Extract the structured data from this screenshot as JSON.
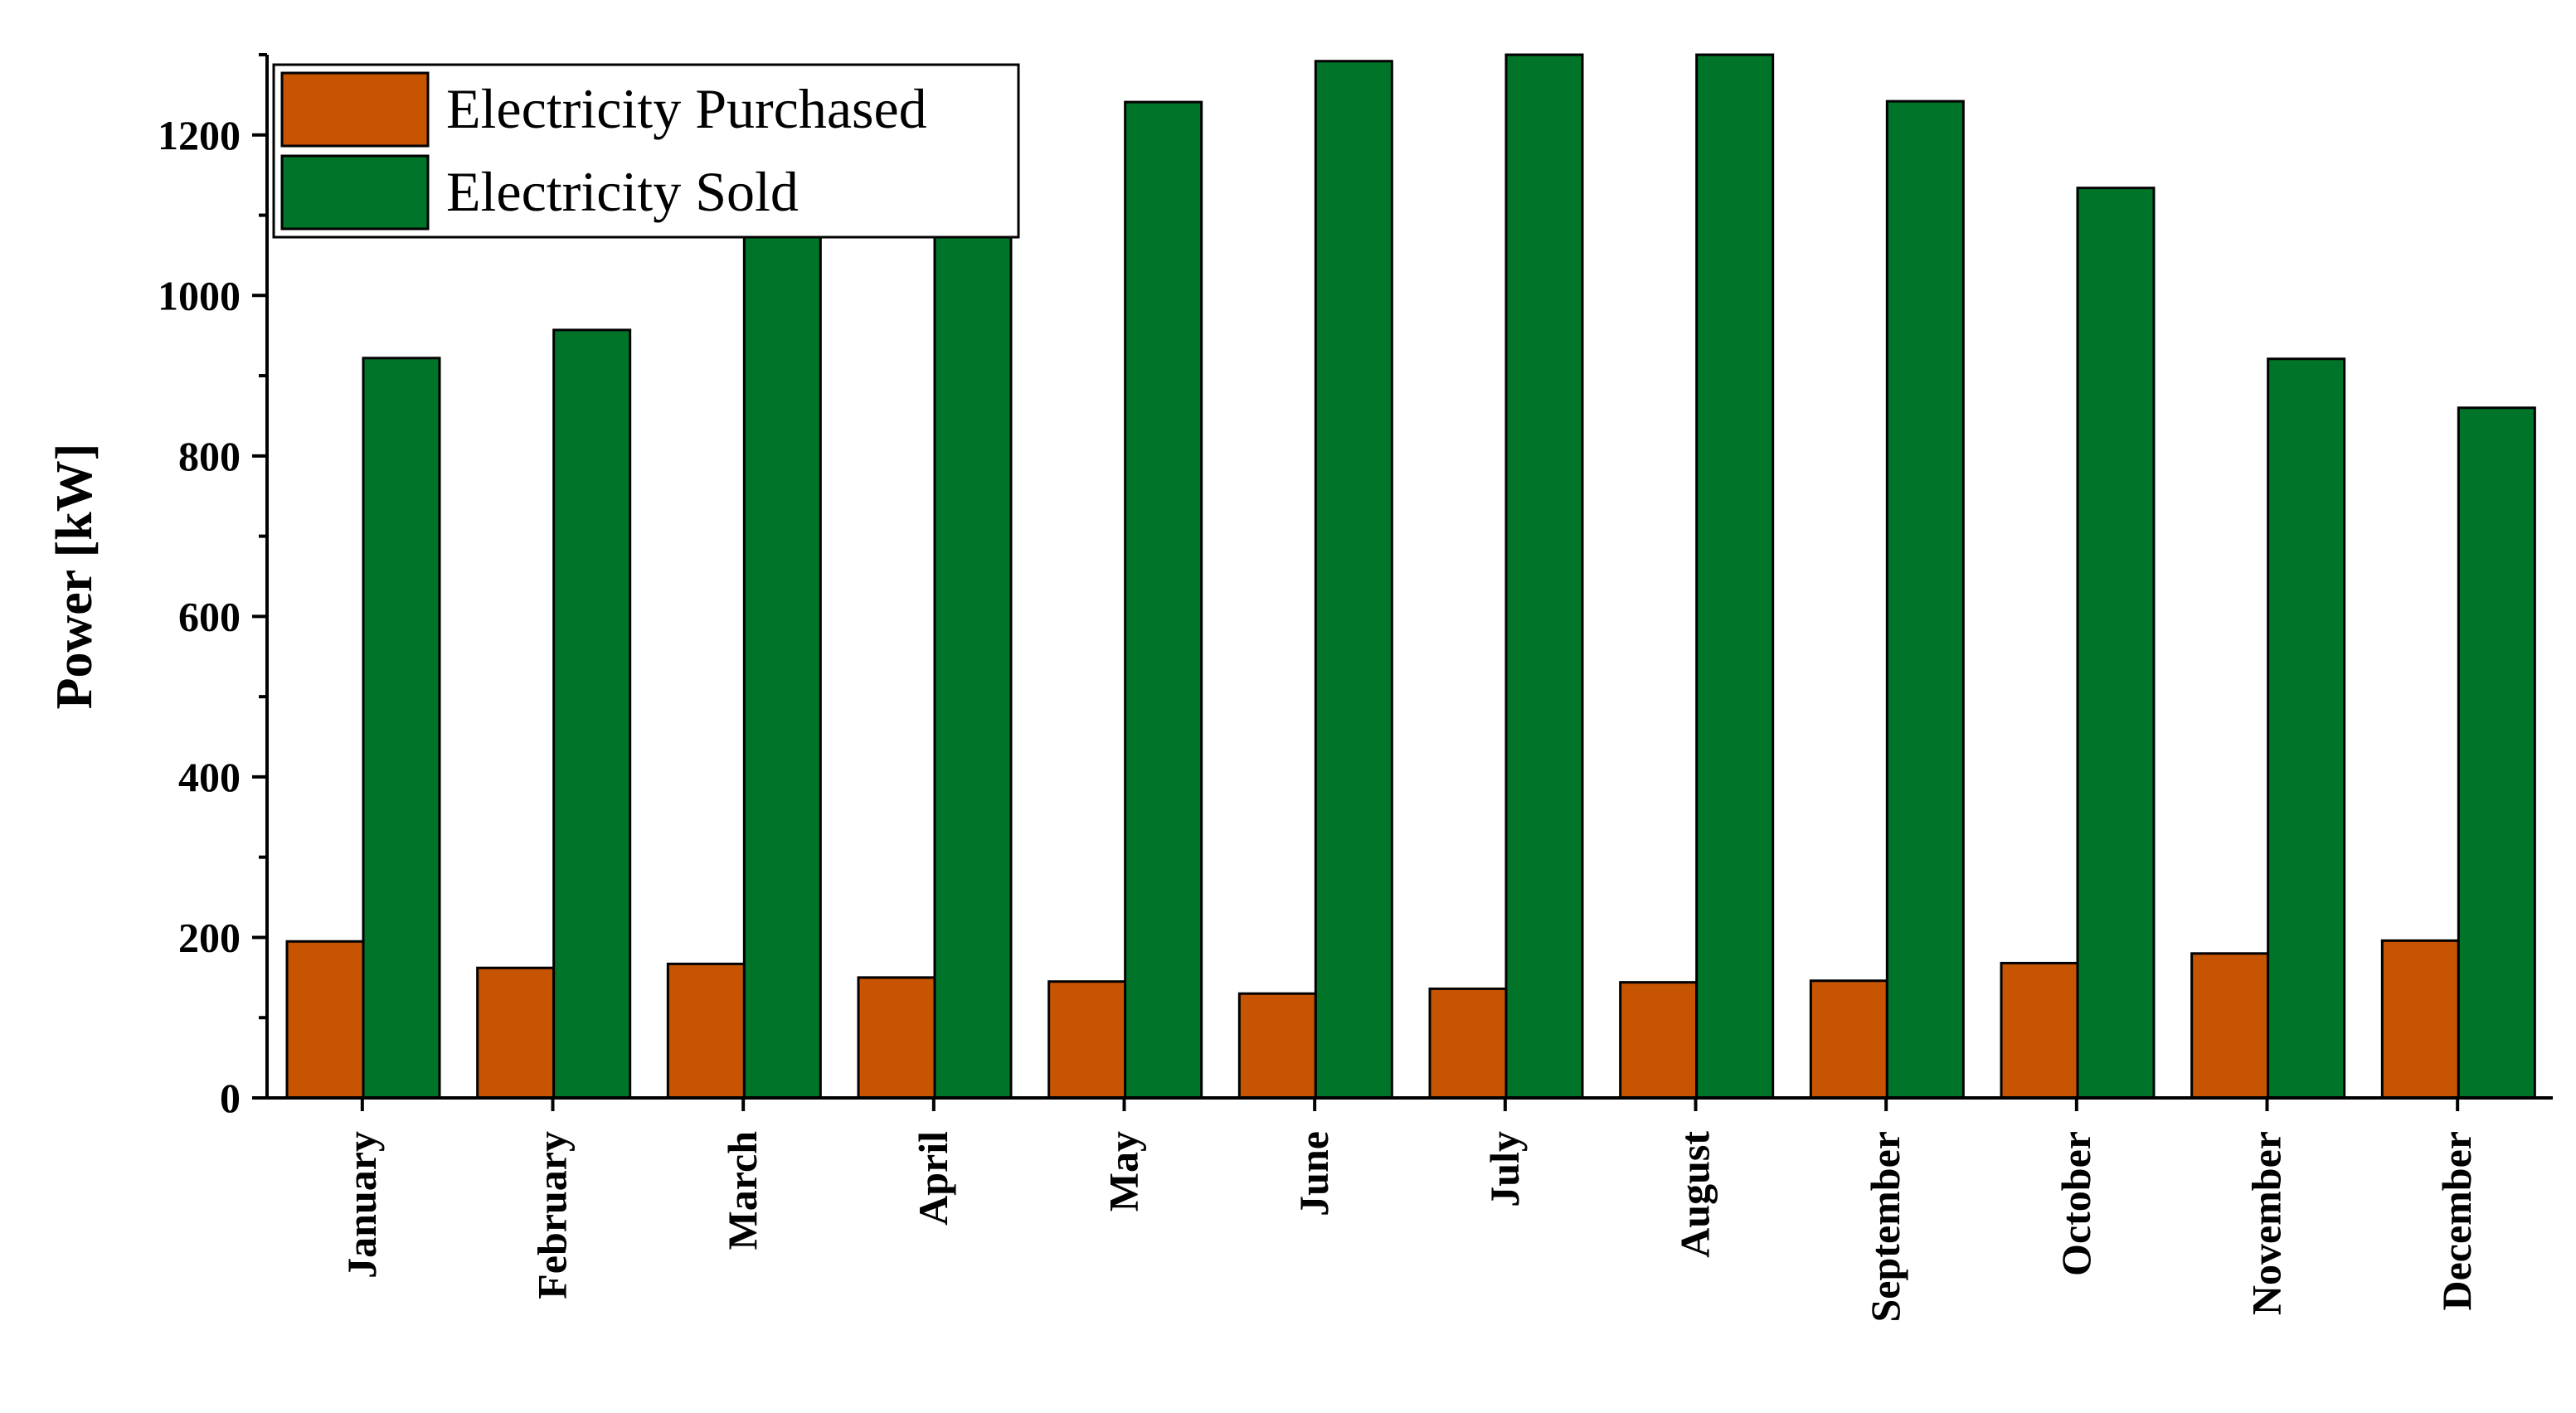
{
  "chart_data": {
    "type": "bar",
    "title": "",
    "xlabel": "",
    "ylabel": "Power [kW]",
    "ylim": [
      0,
      1300
    ],
    "yticks": [
      0,
      200,
      400,
      600,
      800,
      1000,
      1200
    ],
    "grid": false,
    "legend_position": "top-left",
    "categories": [
      "January",
      "February",
      "March",
      "April",
      "May",
      "June",
      "July",
      "August",
      "September",
      "October",
      "November",
      "December"
    ],
    "series": [
      {
        "name": "Electricity Purchased",
        "color": "#c65400",
        "values": [
          195,
          162,
          167,
          150,
          145,
          130,
          136,
          144,
          146,
          168,
          180,
          196
        ]
      },
      {
        "name": "Electricity Sold",
        "color": "#00752a",
        "values": [
          922,
          957,
          1080,
          1080,
          1241,
          1292,
          1300,
          1300,
          1242,
          1134,
          921,
          860
        ]
      }
    ]
  }
}
